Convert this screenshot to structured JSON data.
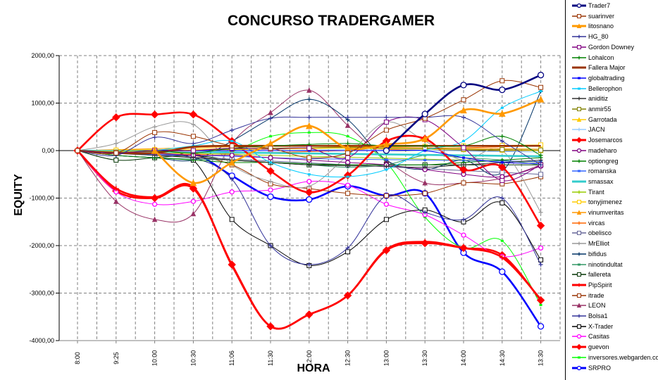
{
  "chart_data": {
    "type": "line",
    "title": "CONCURSO TRADERGAMER",
    "xlabel": "HORA",
    "ylabel": "EQUITY",
    "ylim": [
      -4000,
      2000
    ],
    "yticks": [
      "2000,00",
      "1000,00",
      "0,00",
      "-1000,00",
      "-2000,00",
      "-3000,00",
      "-4000,00"
    ],
    "ytick_values": [
      2000,
      1000,
      0,
      -1000,
      -2000,
      -3000,
      -4000
    ],
    "categories": [
      "8:00",
      "9:25",
      "10:00",
      "10:30",
      "11:06",
      "11:30",
      "12:00",
      "12:30",
      "13:00",
      "13:30",
      "14:00",
      "14:30",
      "13:30"
    ],
    "grid": true,
    "legend_position": "right",
    "series": [
      {
        "name": "Trader7",
        "color": "#000080",
        "marker": "circle",
        "thick": true,
        "values": [
          null,
          null,
          null,
          null,
          null,
          null,
          null,
          null,
          0,
          770,
          1380,
          1280,
          1590
        ]
      },
      {
        "name": "suarinver",
        "color": "#993300",
        "marker": "square",
        "values": [
          0,
          -50,
          380,
          300,
          100,
          50,
          -150,
          -50,
          430,
          680,
          1070,
          1470,
          1330
        ]
      },
      {
        "name": "litosnano",
        "color": "#FF9900",
        "marker": "triangle",
        "thick": true,
        "values": [
          null,
          null,
          0,
          -680,
          -250,
          150,
          520,
          50,
          130,
          250,
          850,
          780,
          1080
        ]
      },
      {
        "name": "HG_80",
        "color": "#333399",
        "marker": "plus",
        "values": [
          0,
          -100,
          280,
          150,
          430,
          680,
          700,
          700,
          700,
          700,
          700,
          200,
          -300
        ]
      },
      {
        "name": "Gordon Downey",
        "color": "#800080",
        "marker": "square",
        "values": [
          0,
          -50,
          0,
          0,
          50,
          30,
          50,
          -150,
          600,
          650,
          60,
          -630,
          -300
        ]
      },
      {
        "name": "Lohalcon",
        "color": "#008000",
        "marker": "plus",
        "values": [
          0,
          -50,
          0,
          -50,
          50,
          100,
          130,
          150,
          100,
          100,
          100,
          300,
          -100
        ]
      },
      {
        "name": "Fallera Major",
        "color": "#993300",
        "marker": "none",
        "thick": true,
        "values": [
          0,
          -50,
          -50,
          80,
          100,
          100,
          100,
          100,
          100,
          100,
          100,
          100,
          100
        ]
      },
      {
        "name": "globaltrading",
        "color": "#0000FF",
        "marker": "dash",
        "values": [
          null,
          null,
          0,
          0,
          0,
          0,
          0,
          0,
          0,
          0,
          -150,
          -250,
          -270
        ]
      },
      {
        "name": "Bellerophon",
        "color": "#00CCFF",
        "marker": "dash",
        "values": [
          null,
          null,
          0,
          100,
          200,
          -250,
          -500,
          -550,
          -400,
          0,
          200,
          900,
          1250
        ]
      },
      {
        "name": "aniditiz",
        "color": "#333333",
        "marker": "plus",
        "values": [
          0,
          -50,
          -100,
          -150,
          -200,
          -250,
          -300,
          -320,
          -330,
          -350,
          -300,
          -250,
          -200
        ]
      },
      {
        "name": "anmir55",
        "color": "#808000",
        "marker": "square",
        "values": [
          0,
          -30,
          -20,
          0,
          30,
          50,
          60,
          70,
          50,
          40,
          30,
          20,
          10
        ]
      },
      {
        "name": "Garrotada",
        "color": "#FFCC00",
        "marker": "triangle",
        "values": [
          0,
          -20,
          -10,
          10,
          20,
          30,
          40,
          50,
          40,
          30,
          20,
          10,
          0
        ]
      },
      {
        "name": "JACN",
        "color": "#99CCFF",
        "marker": "plus",
        "values": [
          0,
          -20,
          -30,
          -20,
          -10,
          0,
          10,
          20,
          10,
          0,
          -10,
          -20,
          -30
        ]
      },
      {
        "name": "Josemarcos",
        "color": "#FF0000",
        "marker": "diamond",
        "thick": true,
        "values": [
          0,
          700,
          760,
          760,
          200,
          -430,
          -880,
          -520,
          200,
          250,
          -400,
          -350,
          -1580
        ]
      },
      {
        "name": "madeharo",
        "color": "#800080",
        "marker": "circle",
        "values": [
          0,
          -30,
          -50,
          -100,
          -100,
          -150,
          -200,
          -250,
          -300,
          -400,
          -500,
          -550,
          -330
        ]
      },
      {
        "name": "optiongreg",
        "color": "#008000",
        "marker": "plus",
        "values": [
          0,
          -100,
          -150,
          -200,
          -250,
          -250,
          -280,
          -300,
          -300,
          -300,
          -250,
          -200,
          -150
        ]
      },
      {
        "name": "romanska",
        "color": "#3366FF",
        "marker": "dash",
        "values": [
          0,
          -50,
          -80,
          -100,
          -120,
          -150,
          -170,
          -180,
          -190,
          -200,
          -210,
          -220,
          -230
        ]
      },
      {
        "name": "smassax",
        "color": "#33CCCC",
        "marker": "none",
        "thick": true,
        "values": [
          0,
          -10,
          -20,
          -30,
          -40,
          -50,
          -60,
          -70,
          -80,
          -90,
          -100,
          -110,
          -120
        ]
      },
      {
        "name": "Tirant",
        "color": "#99CC00",
        "marker": "plus",
        "values": [
          0,
          -20,
          -40,
          -60,
          -80,
          -100,
          -120,
          -140,
          -160,
          -180,
          -200,
          -220,
          -240
        ]
      },
      {
        "name": "tonyjimenez",
        "color": "#FFCC00",
        "marker": "square",
        "values": [
          0,
          10,
          20,
          30,
          40,
          50,
          60,
          70,
          80,
          90,
          100,
          110,
          120
        ]
      },
      {
        "name": "vinumveritas",
        "color": "#FF9900",
        "marker": "triangle",
        "values": [
          0,
          20,
          40,
          60,
          80,
          100,
          90,
          80,
          70,
          60,
          50,
          40,
          30
        ]
      },
      {
        "name": "vircas",
        "color": "#FF6600",
        "marker": "plus",
        "values": [
          0,
          -40,
          -60,
          -80,
          -60,
          -40,
          -20,
          0,
          20,
          40,
          60,
          80,
          100
        ]
      },
      {
        "name": "obelisco",
        "color": "#666699",
        "marker": "square",
        "values": [
          0,
          -60,
          -100,
          -140,
          -180,
          -220,
          -260,
          -300,
          -340,
          -380,
          -420,
          -460,
          -500
        ]
      },
      {
        "name": "MrElliot",
        "color": "#999999",
        "marker": "plus",
        "values": [
          0,
          150,
          500,
          550,
          -300,
          -650,
          -750,
          -100,
          600,
          200,
          -200,
          0,
          -1300
        ]
      },
      {
        "name": "bifidus",
        "color": "#003366",
        "marker": "plus",
        "values": [
          0,
          -100,
          -150,
          -200,
          200,
          680,
          1080,
          650,
          -200,
          -400,
          -200,
          -450,
          1250
        ]
      },
      {
        "name": "ninotindultat",
        "color": "#339966",
        "marker": "dash",
        "values": [
          0,
          -100,
          -150,
          -180,
          -200,
          -250,
          -300,
          -350,
          -300,
          -100,
          -150,
          -200,
          -300
        ]
      },
      {
        "name": "fallereta",
        "color": "#003300",
        "marker": "square",
        "values": [
          0,
          -200,
          -150,
          -100,
          -200,
          -250,
          -300,
          -300,
          -300,
          -300,
          -300,
          -300,
          -300
        ]
      },
      {
        "name": "PipSpirit",
        "color": "#FF0000",
        "marker": "plus",
        "thick": true,
        "values": [
          0,
          -800,
          -980,
          -770,
          -2420,
          -3700,
          -3450,
          -3050,
          -2080,
          -1920,
          -2050,
          -2250,
          -3130
        ]
      },
      {
        "name": "itrade",
        "color": "#993300",
        "marker": "square",
        "values": [
          0,
          -50,
          -80,
          -100,
          -300,
          -700,
          -800,
          -900,
          -950,
          -900,
          -680,
          -700,
          -550
        ]
      },
      {
        "name": "LEON",
        "color": "#993366",
        "marker": "triangle",
        "values": [
          0,
          -1070,
          -1450,
          -1330,
          150,
          800,
          1270,
          530,
          -200,
          -680,
          -680,
          -580,
          -300
        ]
      },
      {
        "name": "Bolsa1",
        "color": "#333399",
        "marker": "plus",
        "values": [
          0,
          -50,
          -100,
          -150,
          -600,
          -2000,
          -2400,
          -2050,
          -950,
          -1300,
          -1450,
          -1000,
          -2400
        ]
      },
      {
        "name": "X-Trader",
        "color": "#000000",
        "marker": "square",
        "values": [
          null,
          null,
          0,
          -200,
          -1450,
          -2000,
          -2420,
          -2130,
          -1450,
          -1250,
          -1500,
          -1100,
          -2300
        ]
      },
      {
        "name": "Casitas",
        "color": "#FF00FF",
        "marker": "circle",
        "values": [
          0,
          -870,
          -1130,
          -1070,
          -870,
          -830,
          -650,
          -730,
          -1130,
          -1350,
          -1780,
          -2230,
          -2050
        ]
      },
      {
        "name": "guevon",
        "color": "#FF0000",
        "marker": "diamond",
        "thick": true,
        "values": [
          0,
          -850,
          -1000,
          -800,
          -2400,
          -3700,
          -3450,
          -3050,
          -2100,
          -1950,
          -2050,
          -2200,
          -3150
        ]
      },
      {
        "name": "inversores.webgarden.com",
        "color": "#00FF00",
        "marker": "dash",
        "values": [
          null,
          null,
          0,
          0,
          0,
          300,
          380,
          300,
          -250,
          -1400,
          -2050,
          -1900,
          -3250
        ]
      },
      {
        "name": "SRPRO",
        "color": "#0000FF",
        "marker": "circle",
        "thick": true,
        "values": [
          null,
          null,
          0,
          -50,
          -530,
          -970,
          -1030,
          -750,
          -950,
          -900,
          -2150,
          -2550,
          -3700
        ]
      }
    ]
  }
}
